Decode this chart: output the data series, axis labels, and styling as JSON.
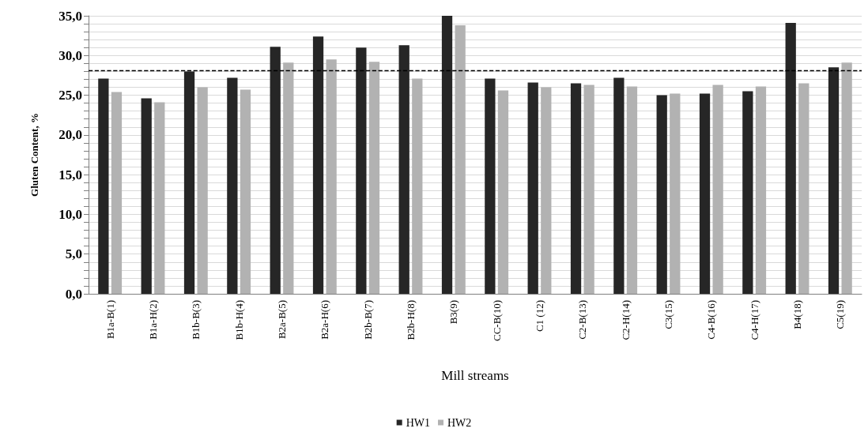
{
  "chart_data": {
    "type": "bar",
    "xlabel": "Mill streams",
    "ylabel": "Gluten Content, %",
    "categories": [
      "B1a-B(1)",
      "B1a-H(2)",
      "B1b-B(3)",
      "B1b-H(4)",
      "B2a-B(5)",
      "B2a-H(6)",
      "B2b-B(7)",
      "B2b-H(8)",
      "B3(9)",
      "CC-B(10)",
      "C1 (12)",
      "C2-B(13)",
      "C2-H(14)",
      "C3(15)",
      "C4-B(16)",
      "C4-H(17)",
      "B4(18)",
      "C5(19)"
    ],
    "series": [
      {
        "name": "HW1",
        "color": "#262626",
        "values": [
          27.1,
          24.6,
          28.0,
          27.2,
          31.1,
          32.4,
          31.0,
          31.3,
          35.0,
          27.1,
          26.6,
          26.5,
          27.2,
          25.0,
          25.2,
          25.5,
          34.1,
          28.5
        ]
      },
      {
        "name": "HW2",
        "color": "#b2b2b2",
        "values": [
          25.4,
          24.1,
          26.0,
          25.7,
          29.1,
          29.5,
          29.2,
          27.1,
          33.8,
          25.6,
          26.0,
          26.3,
          26.1,
          25.2,
          26.3,
          26.1,
          26.5,
          29.1
        ]
      }
    ],
    "ylim": [
      0,
      35
    ],
    "yticks": [
      {
        "value": 0,
        "label": "0,0"
      },
      {
        "value": 5,
        "label": "5,0"
      },
      {
        "value": 10,
        "label": "10,0"
      },
      {
        "value": 15,
        "label": "15,0"
      },
      {
        "value": 20,
        "label": "20,0"
      },
      {
        "value": 25,
        "label": "25,0"
      },
      {
        "value": 30,
        "label": "30,0"
      },
      {
        "value": 35,
        "label": "35,0"
      }
    ],
    "ref_lines": [
      {
        "axis": "y",
        "value": 28.1,
        "color": "#000000",
        "line_style": "dashed"
      }
    ],
    "grid": "y",
    "legend": "bottom"
  }
}
